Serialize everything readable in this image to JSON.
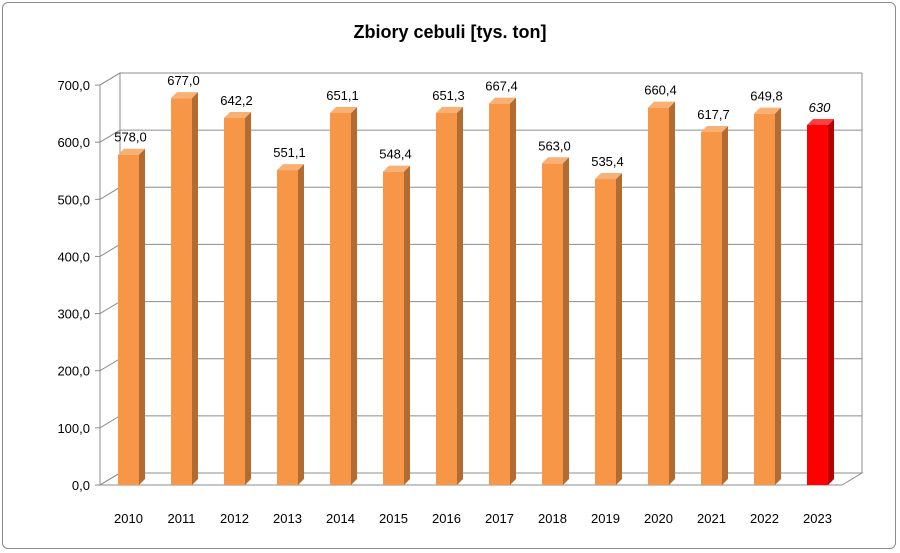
{
  "chart_data": {
    "type": "bar",
    "title": "Zbiory cebuli [tys. ton]",
    "xlabel": "",
    "ylabel": "",
    "ylim": [
      0,
      700
    ],
    "y_tick_step": 100,
    "y_tick_labels": [
      "0,0",
      "100,0",
      "200,0",
      "300,0",
      "400,0",
      "500,0",
      "600,0",
      "700,0"
    ],
    "grid": true,
    "legend": "none",
    "categories": [
      "2010",
      "2011",
      "2012",
      "2013",
      "2014",
      "2015",
      "2016",
      "2017",
      "2018",
      "2019",
      "2020",
      "2021",
      "2022",
      "2023"
    ],
    "series": [
      {
        "values": [
          578.0,
          677.0,
          642.2,
          551.1,
          651.1,
          548.4,
          651.3,
          667.4,
          563.0,
          535.4,
          660.4,
          617.7,
          649.8,
          630
        ],
        "labels": [
          "578,0",
          "677,0",
          "642,2",
          "551,1",
          "651,1",
          "548,4",
          "651,3",
          "667,4",
          "563,0",
          "535,4",
          "660,4",
          "617,7",
          "649,8",
          "630"
        ],
        "color": "#F79646",
        "highlight_index": 13,
        "highlight_color": "#FF0000",
        "italic_label_index": 13
      }
    ]
  }
}
